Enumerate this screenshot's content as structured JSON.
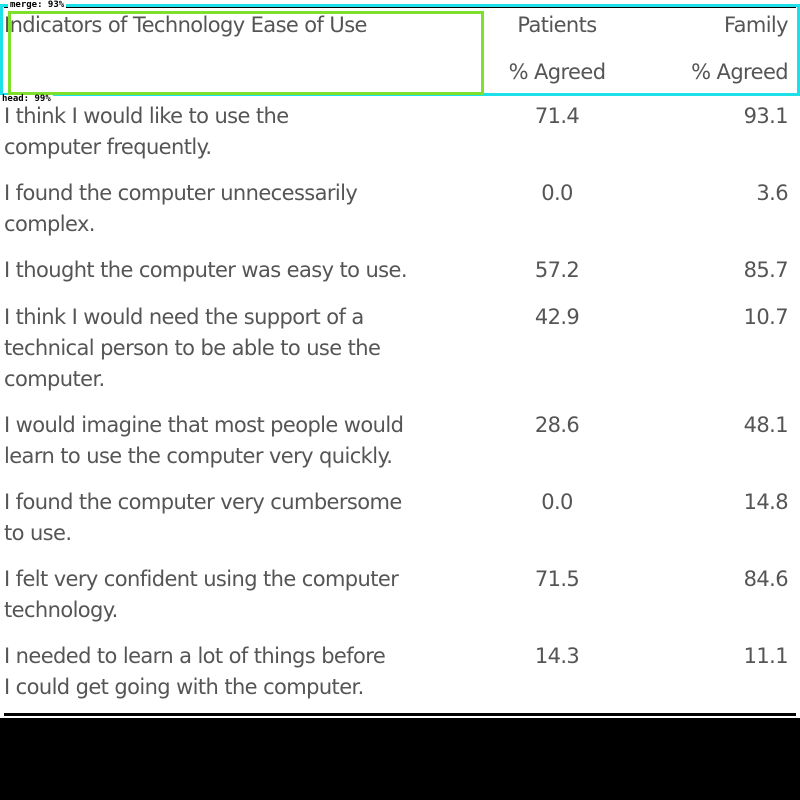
{
  "overlay": {
    "merge_tag": "merge: 93%",
    "head_tag": "head: 99%"
  },
  "table": {
    "header": {
      "indicator": "Indicators of Technology Ease of Use",
      "patients": "Patients",
      "family": "Family",
      "patients_sub": "% Agreed",
      "family_sub": "% Agreed"
    },
    "rows": [
      {
        "line1": "I think I would like to use the",
        "line2": "computer frequently.",
        "line3": "",
        "patients": "71.4",
        "family": "93.1"
      },
      {
        "line1": "I found the computer unnecessarily",
        "line2": "complex.",
        "line3": "",
        "patients": "0.0",
        "family": "3.6"
      },
      {
        "line1": "I thought the computer was easy to use.",
        "line2": "",
        "line3": "",
        "patients": "57.2",
        "family": "85.7"
      },
      {
        "line1": "I think I would need the support of a",
        "line2": "technical person to be able to use the",
        "line3": "computer.",
        "patients": "42.9",
        "family": "10.7"
      },
      {
        "line1": "I would imagine that most people would",
        "line2": "learn to use the computer very quickly.",
        "line3": "",
        "patients": "28.6",
        "family": "48.1"
      },
      {
        "line1": "I found the computer very cumbersome",
        "line2": "to use.",
        "line3": "",
        "patients": "0.0",
        "family": "14.8"
      },
      {
        "line1": "I felt very confident using the computer",
        "line2": "technology.",
        "line3": "",
        "patients": "71.5",
        "family": "84.6"
      },
      {
        "line1": "I needed to learn a lot of things before",
        "line2": "I could get going with the computer.",
        "line3": "",
        "patients": "14.3",
        "family": "11.1"
      }
    ]
  }
}
